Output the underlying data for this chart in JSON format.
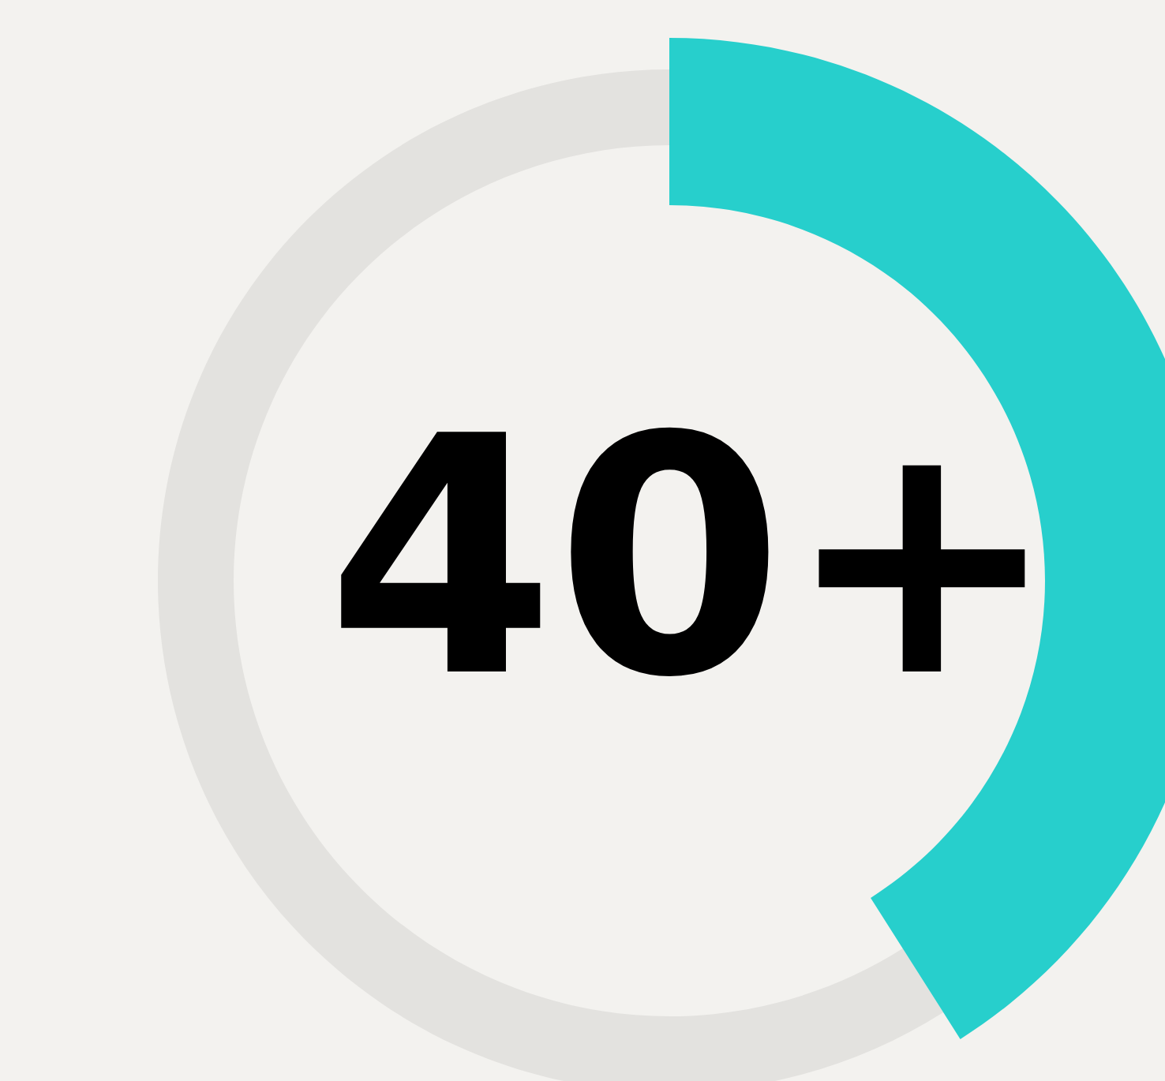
{
  "chart_data": {
    "type": "donut",
    "categories": [
      null,
      null
    ],
    "values": [
      41,
      59
    ],
    "colors": [
      "#27cfcc",
      "#e3e2df"
    ],
    "annotations": [
      "40+"
    ]
  }
}
